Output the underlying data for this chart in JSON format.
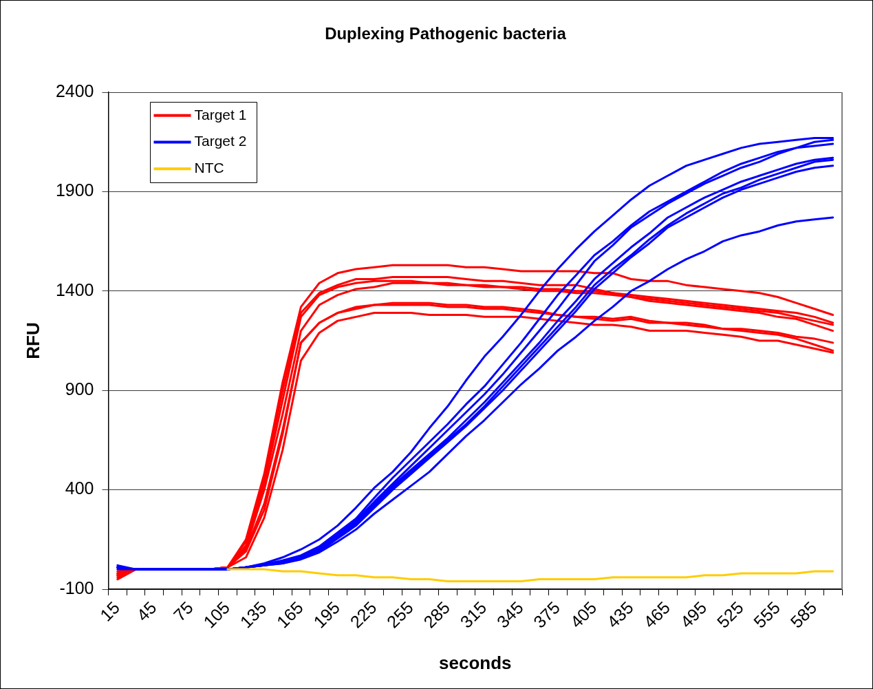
{
  "chart_data": {
    "type": "line",
    "title": "Duplexing Pathogenic bacteria",
    "xlabel": "seconds",
    "ylabel": "RFU",
    "categories": [
      "15",
      null,
      "45",
      null,
      "75",
      null,
      "105",
      null,
      "135",
      null,
      "165",
      null,
      "195",
      null,
      "225",
      null,
      "255",
      null,
      "285",
      null,
      "315",
      null,
      "345",
      null,
      "375",
      null,
      "405",
      null,
      "435",
      null,
      "465",
      null,
      "495",
      null,
      "525",
      null,
      "555",
      null,
      "585",
      null
    ],
    "series": [
      {
        "name": "Target 1",
        "color": "#ff0000",
        "values": [
          -10,
          0,
          0,
          0,
          0,
          0,
          10,
          150,
          480,
          940,
          1320,
          1440,
          1490,
          1510,
          1520,
          1530,
          1530,
          1530,
          1530,
          1520,
          1520,
          1510,
          1500,
          1500,
          1500,
          1500,
          1490,
          1490,
          1460,
          1450,
          1450,
          1430,
          1420,
          1410,
          1400,
          1390,
          1370,
          1340,
          1310,
          1280
        ]
      },
      {
        "color": "#ff0000",
        "values": [
          -20,
          0,
          0,
          0,
          0,
          0,
          10,
          140,
          460,
          900,
          1290,
          1390,
          1430,
          1460,
          1460,
          1470,
          1470,
          1470,
          1470,
          1460,
          1450,
          1450,
          1440,
          1430,
          1430,
          1430,
          1410,
          1390,
          1380,
          1370,
          1360,
          1350,
          1340,
          1330,
          1320,
          1310,
          1300,
          1290,
          1270,
          1240
        ]
      },
      {
        "color": "#ff0000",
        "values": [
          -50,
          0,
          0,
          0,
          0,
          0,
          10,
          120,
          430,
          850,
          1270,
          1380,
          1420,
          1440,
          1450,
          1450,
          1450,
          1440,
          1440,
          1430,
          1430,
          1420,
          1420,
          1410,
          1410,
          1400,
          1400,
          1390,
          1370,
          1360,
          1350,
          1340,
          1330,
          1320,
          1310,
          1300,
          1290,
          1270,
          1250,
          1230
        ]
      },
      {
        "color": "#ff0000",
        "values": [
          -30,
          0,
          0,
          0,
          0,
          0,
          10,
          110,
          400,
          780,
          1200,
          1330,
          1380,
          1410,
          1420,
          1440,
          1440,
          1440,
          1430,
          1430,
          1420,
          1420,
          1410,
          1400,
          1400,
          1390,
          1390,
          1380,
          1370,
          1350,
          1340,
          1330,
          1320,
          1310,
          1300,
          1290,
          1270,
          1260,
          1230,
          1200
        ]
      },
      {
        "color": "#ff0000",
        "values": [
          -40,
          0,
          0,
          0,
          0,
          0,
          10,
          100,
          330,
          700,
          1140,
          1240,
          1290,
          1320,
          1330,
          1340,
          1340,
          1340,
          1330,
          1330,
          1320,
          1320,
          1310,
          1300,
          1280,
          1270,
          1270,
          1260,
          1270,
          1250,
          1240,
          1240,
          1230,
          1210,
          1210,
          1200,
          1190,
          1170,
          1160,
          1140
        ]
      },
      {
        "color": "#ff0000",
        "values": [
          -20,
          0,
          0,
          0,
          0,
          0,
          10,
          90,
          300,
          680,
          1140,
          1240,
          1290,
          1310,
          1330,
          1330,
          1330,
          1330,
          1320,
          1320,
          1310,
          1310,
          1300,
          1290,
          1280,
          1270,
          1260,
          1250,
          1260,
          1240,
          1240,
          1230,
          1220,
          1210,
          1200,
          1190,
          1180,
          1160,
          1130,
          1100
        ]
      },
      {
        "color": "#ff0000",
        "values": [
          -30,
          0,
          0,
          0,
          0,
          0,
          10,
          60,
          260,
          600,
          1050,
          1190,
          1250,
          1270,
          1290,
          1290,
          1290,
          1280,
          1280,
          1280,
          1270,
          1270,
          1270,
          1260,
          1250,
          1240,
          1230,
          1230,
          1220,
          1200,
          1200,
          1200,
          1190,
          1180,
          1170,
          1150,
          1150,
          1130,
          1110,
          1090
        ]
      },
      {
        "name": "Target 2",
        "color": "#0000ff",
        "values": [
          10,
          0,
          0,
          0,
          0,
          0,
          0,
          10,
          30,
          60,
          100,
          150,
          220,
          310,
          410,
          490,
          590,
          710,
          820,
          950,
          1070,
          1170,
          1280,
          1400,
          1510,
          1610,
          1700,
          1780,
          1860,
          1930,
          1980,
          2030,
          2060,
          2090,
          2120,
          2140,
          2150,
          2160,
          2170,
          2170
        ]
      },
      {
        "color": "#0000ff",
        "values": [
          0,
          0,
          0,
          0,
          0,
          0,
          0,
          10,
          25,
          45,
          70,
          115,
          185,
          255,
          360,
          460,
          550,
          640,
          730,
          830,
          920,
          1030,
          1140,
          1260,
          1380,
          1480,
          1580,
          1650,
          1730,
          1800,
          1850,
          1900,
          1950,
          2000,
          2040,
          2070,
          2100,
          2120,
          2150,
          2160
        ]
      },
      {
        "color": "#0000ff",
        "values": [
          10,
          0,
          0,
          0,
          0,
          0,
          0,
          10,
          25,
          40,
          65,
          105,
          175,
          245,
          340,
          430,
          520,
          610,
          700,
          790,
          880,
          980,
          1090,
          1200,
          1310,
          1430,
          1550,
          1630,
          1720,
          1780,
          1840,
          1890,
          1940,
          1980,
          2020,
          2050,
          2090,
          2120,
          2130,
          2140
        ]
      },
      {
        "color": "#0000ff",
        "values": [
          10,
          0,
          0,
          0,
          0,
          0,
          0,
          10,
          20,
          40,
          60,
          100,
          165,
          240,
          330,
          420,
          500,
          580,
          660,
          750,
          840,
          940,
          1040,
          1140,
          1250,
          1350,
          1460,
          1540,
          1620,
          1690,
          1770,
          1820,
          1870,
          1910,
          1950,
          1980,
          2010,
          2040,
          2060,
          2070
        ]
      },
      {
        "color": "#0000ff",
        "values": [
          20,
          0,
          0,
          0,
          0,
          0,
          0,
          10,
          20,
          35,
          60,
          95,
          160,
          230,
          320,
          410,
          490,
          570,
          650,
          730,
          820,
          920,
          1020,
          1120,
          1220,
          1320,
          1430,
          1510,
          1580,
          1660,
          1730,
          1790,
          1840,
          1890,
          1920,
          1960,
          1990,
          2020,
          2050,
          2060
        ]
      },
      {
        "color": "#0000ff",
        "values": [
          10,
          0,
          0,
          0,
          0,
          0,
          0,
          10,
          20,
          30,
          55,
          90,
          155,
          220,
          310,
          400,
          480,
          560,
          640,
          720,
          810,
          900,
          1000,
          1100,
          1200,
          1300,
          1410,
          1490,
          1570,
          1640,
          1720,
          1770,
          1820,
          1870,
          1910,
          1940,
          1970,
          2000,
          2020,
          2030
        ]
      },
      {
        "color": "#0000ff",
        "values": [
          10,
          0,
          0,
          0,
          0,
          0,
          0,
          10,
          20,
          30,
          50,
          85,
          140,
          200,
          280,
          350,
          420,
          490,
          580,
          670,
          750,
          840,
          930,
          1010,
          1100,
          1170,
          1250,
          1320,
          1400,
          1450,
          1510,
          1560,
          1600,
          1650,
          1680,
          1700,
          1730,
          1750,
          1760,
          1770
        ]
      },
      {
        "name": "NTC",
        "color": "#ffcc00",
        "values": [
          null,
          null,
          null,
          null,
          null,
          null,
          0,
          0,
          0,
          -10,
          -10,
          -20,
          -30,
          -30,
          -40,
          -40,
          -50,
          -50,
          -60,
          -60,
          -60,
          -60,
          -60,
          -50,
          -50,
          -50,
          -50,
          -40,
          -40,
          -40,
          -40,
          -40,
          -30,
          -30,
          -20,
          -20,
          -20,
          -20,
          -10,
          -10
        ]
      }
    ],
    "ylim": [
      -100,
      2400
    ],
    "yticks": [
      -100,
      400,
      900,
      1400,
      1900,
      2400
    ],
    "grid": "y",
    "legend": "top left"
  }
}
